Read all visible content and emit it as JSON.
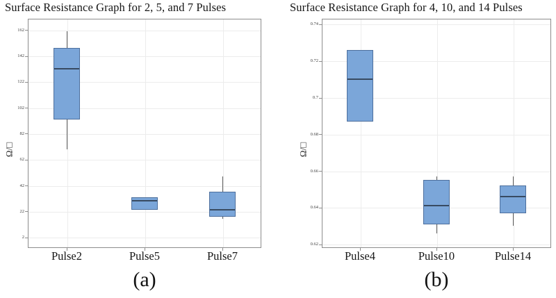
{
  "colors": {
    "box_fill": "#7ba6d9",
    "box_border": "#4d6f9d",
    "median_line": "#384a61",
    "whisker": "#5c5c5c",
    "gridline": "#ececec",
    "axis_border": "#8c8c8c",
    "text": "#161616"
  },
  "chart_data": [
    {
      "type": "box",
      "title": "Surface Resistance Graph for 2, 5, and 7 Pulses",
      "ylabel": "Ω/□",
      "panel_label": "(a)",
      "categories": [
        "Pulse2",
        "Pulse5",
        "Pulse7"
      ],
      "yticks": [
        {
          "label": "2",
          "value": 2
        },
        {
          "label": "22",
          "value": 22
        },
        {
          "label": "42",
          "value": 42
        },
        {
          "label": "62",
          "value": 62
        },
        {
          "label": "82",
          "value": 82
        },
        {
          "label": "102",
          "value": 102
        },
        {
          "label": "122",
          "value": 122
        },
        {
          "label": "142",
          "value": 142
        },
        {
          "label": "162",
          "value": 162
        }
      ],
      "ylim": [
        -6.3,
        170.8
      ],
      "grid": true,
      "legend": false,
      "boxes": [
        {
          "category": "Pulse2",
          "min": 70,
          "q1": 93,
          "median": 132,
          "q3": 148,
          "max": 161
        },
        {
          "category": "Pulse5",
          "min": 23,
          "q1": 23,
          "median": 30,
          "q3": 33,
          "max": 33
        },
        {
          "category": "Pulse7",
          "min": 16,
          "q1": 18,
          "median": 23,
          "q3": 37,
          "max": 49
        }
      ]
    },
    {
      "type": "box",
      "title": "Surface Resistance Graph for 4, 10, and 14 Pulses",
      "ylabel": "Ω/□",
      "panel_label": "(b)",
      "categories": [
        "Pulse4",
        "Pulse10",
        "Pulse14"
      ],
      "yticks": [
        {
          "label": "0.62",
          "value": 0.62
        },
        {
          "label": "0.64",
          "value": 0.64
        },
        {
          "label": "0.66",
          "value": 0.66
        },
        {
          "label": "0.68",
          "value": 0.68
        },
        {
          "label": "0.7",
          "value": 0.7
        },
        {
          "label": "0.72",
          "value": 0.72
        },
        {
          "label": "0.74",
          "value": 0.74
        }
      ],
      "ylim": [
        0.618,
        0.743
      ],
      "grid": true,
      "legend": false,
      "boxes": [
        {
          "category": "Pulse4",
          "min": 0.687,
          "q1": 0.687,
          "median": 0.71,
          "q3": 0.726,
          "max": 0.726
        },
        {
          "category": "Pulse10",
          "min": 0.626,
          "q1": 0.631,
          "median": 0.641,
          "q3": 0.655,
          "max": 0.657
        },
        {
          "category": "Pulse14",
          "min": 0.63,
          "q1": 0.637,
          "median": 0.646,
          "q3": 0.652,
          "max": 0.657
        }
      ]
    }
  ]
}
